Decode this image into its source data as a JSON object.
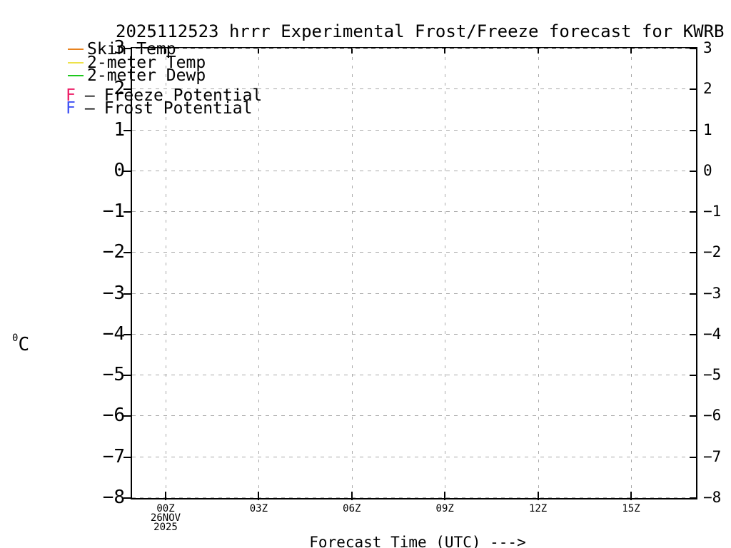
{
  "title": "2025112523 hrrr Experimental Frost/Freeze forecast for KWRB",
  "y_unit": {
    "sup": "0",
    "base": "C"
  },
  "x_axis_caption": "Forecast Time (UTC) --->",
  "legend": {
    "items": [
      {
        "swatch": "line",
        "color": "#E8821E",
        "label": "Skin Temp"
      },
      {
        "swatch": "line",
        "color": "#EDE24A",
        "label": "2-meter Temp"
      },
      {
        "swatch": "line",
        "color": "#1DC81D",
        "label": "2-meter Dewp"
      },
      {
        "swatch": "letter",
        "symbol": "F",
        "separator": "—",
        "color": "#ED1A64",
        "label": "Freeze Potential"
      },
      {
        "swatch": "letter",
        "symbol": "F",
        "separator": "—",
        "color": "#3D50F3",
        "label": "Frost Potential"
      }
    ]
  },
  "chart_data": {
    "type": "line",
    "title": "2025112523 hrrr Experimental Frost/Freeze forecast for KWRB",
    "xlabel": "Forecast Time (UTC) --->",
    "ylabel": "°C",
    "ylim": [
      -8,
      3
    ],
    "yticks": [
      3,
      2,
      1,
      0,
      -1,
      -2,
      -3,
      -4,
      -5,
      -6,
      -7,
      -8
    ],
    "xticks": [
      {
        "label": "00Z",
        "sublabels": [
          "26NOV",
          "2025"
        ]
      },
      {
        "label": "03Z",
        "sublabels": []
      },
      {
        "label": "06Z",
        "sublabels": []
      },
      {
        "label": "09Z",
        "sublabels": []
      },
      {
        "label": "12Z",
        "sublabels": []
      },
      {
        "label": "15Z",
        "sublabels": []
      }
    ],
    "grid": "dashed gray, horizontal at every 1 degC, vertical at every 3 h",
    "legend_position": "top-left overlay",
    "series": [
      {
        "name": "Skin Temp",
        "color": "#E8821E",
        "x": [],
        "values": []
      },
      {
        "name": "2-meter Temp",
        "color": "#EDE24A",
        "x": [],
        "values": []
      },
      {
        "name": "2-meter Dewp",
        "color": "#1DC81D",
        "x": [],
        "values": []
      }
    ],
    "markers": [
      {
        "name": "Freeze Potential",
        "symbol": "F",
        "color": "#ED1A64",
        "x": []
      },
      {
        "name": "Frost Potential",
        "symbol": "F",
        "color": "#3D50F3",
        "x": []
      }
    ],
    "note": "plot area is empty - no series data drawn"
  }
}
